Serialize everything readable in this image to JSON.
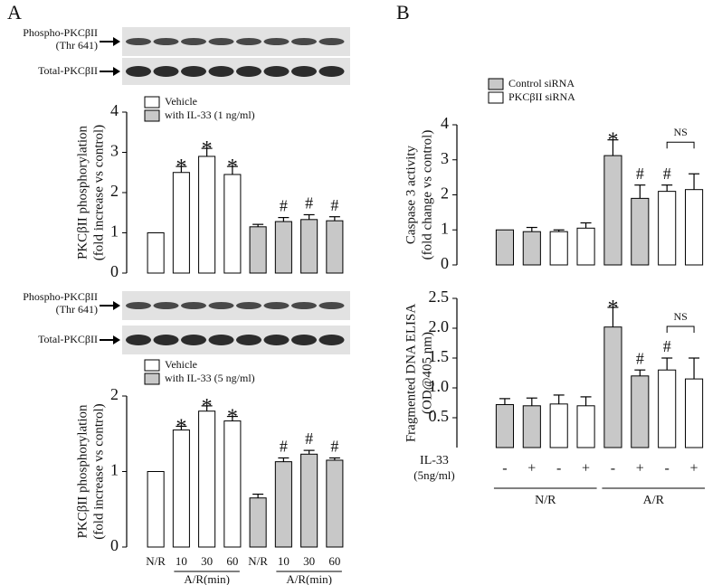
{
  "panels": [
    "A",
    "B"
  ],
  "blots": [
    {
      "rows": [
        {
          "label": [
            "Phospho-PKCβII",
            "(Thr 641)"
          ]
        },
        {
          "label": [
            "Total-PKCβII"
          ]
        }
      ]
    },
    {
      "rows": [
        {
          "label": [
            "Phospho-PKCβII",
            "(Thr 641)"
          ]
        },
        {
          "label": [
            "Total-PKCβII"
          ]
        }
      ]
    }
  ],
  "chart_data": [
    {
      "type": "bar",
      "ylabel": [
        "PKCβII phosphorylation",
        "(fold increase vs control)"
      ],
      "ylim": [
        0,
        4
      ],
      "yticks": [
        0,
        1,
        2,
        3,
        4
      ],
      "series": [
        {
          "name": "Vehicle",
          "color": "#ffffff",
          "values": [
            1,
            2.5,
            2.9,
            2.45,
            null,
            null,
            null,
            null
          ],
          "errors": [
            null,
            0.15,
            0.2,
            0.2,
            null,
            null,
            null,
            null
          ],
          "labels": [
            null,
            "*",
            "*",
            "*",
            null,
            null,
            null,
            null
          ]
        },
        {
          "name": "with IL-33 (1 ng/ml)",
          "color": "#c8c8c8",
          "values": [
            null,
            null,
            null,
            null,
            1.15,
            1.28,
            1.33,
            1.3
          ],
          "errors": [
            null,
            null,
            null,
            null,
            0.06,
            0.1,
            0.12,
            0.1
          ],
          "labels": [
            null,
            null,
            null,
            null,
            null,
            "#",
            "#",
            "#"
          ]
        }
      ]
    },
    {
      "type": "bar",
      "ylabel": [
        "PKCβII phosphorylation",
        "(fold increase vs control)"
      ],
      "ylim": [
        0,
        2
      ],
      "yticks": [
        0,
        1,
        2
      ],
      "categories": [
        "N/R",
        "10",
        "30",
        "60",
        "N/R",
        "10",
        "30",
        "60"
      ],
      "groups": [
        {
          "label": "A/R(min)",
          "from": 1,
          "to": 3
        },
        {
          "label": "A/R(min)",
          "from": 5,
          "to": 7
        }
      ],
      "series": [
        {
          "name": "Vehicle",
          "color": "#ffffff",
          "values": [
            1,
            1.55,
            1.8,
            1.67,
            null,
            null,
            null,
            null
          ],
          "errors": [
            null,
            0.05,
            0.07,
            0.06,
            null,
            null,
            null,
            null
          ],
          "labels": [
            null,
            "*",
            "*",
            "*",
            null,
            null,
            null,
            null
          ]
        },
        {
          "name": "with IL-33 (5 ng/ml)",
          "color": "#c8c8c8",
          "values": [
            null,
            null,
            null,
            null,
            0.65,
            1.13,
            1.23,
            1.15
          ],
          "errors": [
            null,
            null,
            null,
            null,
            0.05,
            0.05,
            0.05,
            0.03
          ],
          "labels": [
            null,
            null,
            null,
            null,
            null,
            "#",
            "#",
            "#"
          ]
        }
      ]
    },
    {
      "type": "bar",
      "ylabel": [
        "Caspase 3 activity",
        "(fold change vs control)"
      ],
      "ylim": [
        0,
        4
      ],
      "yticks": [
        0,
        1,
        2,
        3,
        4
      ],
      "brackets": [
        {
          "text": "NS",
          "from": 6,
          "to": 7
        }
      ],
      "series": [
        {
          "name": "Control siRNA",
          "color": "#c8c8c8",
          "values": [
            1,
            0.95,
            null,
            null,
            3.12,
            1.9,
            null,
            null
          ],
          "errors": [
            null,
            0.12,
            null,
            null,
            0.45,
            0.38,
            null,
            null
          ],
          "labels": [
            null,
            null,
            null,
            null,
            "*",
            "#",
            null,
            null
          ]
        },
        {
          "name": "PKCβII siRNA",
          "color": "#ffffff",
          "values": [
            null,
            null,
            0.95,
            1.05,
            null,
            null,
            2.1,
            2.15
          ],
          "errors": [
            null,
            null,
            0.05,
            0.15,
            null,
            null,
            0.18,
            0.45
          ],
          "labels": [
            null,
            null,
            null,
            null,
            null,
            null,
            "#",
            null
          ]
        }
      ]
    },
    {
      "type": "bar",
      "ylabel": [
        "Fragmented DNA ELISA",
        "(OD@405 nm)"
      ],
      "ylim": [
        0,
        2.5
      ],
      "yticks": [
        {
          "value": 0.5,
          "label": "0.5"
        },
        {
          "value": 1,
          "label": "1.0"
        },
        {
          "value": 1.5,
          "label": "1.5"
        },
        {
          "value": 2,
          "label": "2.0"
        },
        {
          "value": 2.5,
          "label": "2.5"
        }
      ],
      "brackets": [
        {
          "text": "NS",
          "from": 6,
          "to": 7
        }
      ],
      "category_axis_label": [
        "IL-33",
        "(5ng/ml)"
      ],
      "categories": [
        "-",
        "+",
        "-",
        "+",
        "-",
        "+",
        "-",
        "+"
      ],
      "groups": [
        {
          "label": "N/R",
          "from": 0,
          "to": 3
        },
        {
          "label": "A/R",
          "from": 4,
          "to": 7
        }
      ],
      "series": [
        {
          "name": "Control siRNA",
          "color": "#c8c8c8",
          "values": [
            0.72,
            0.7,
            null,
            null,
            2.02,
            1.2,
            null,
            null
          ],
          "errors": [
            0.1,
            0.13,
            null,
            null,
            0.33,
            0.1,
            null,
            null
          ],
          "labels": [
            null,
            null,
            null,
            null,
            "*",
            "#",
            null,
            null
          ]
        },
        {
          "name": "PKCβII siRNA",
          "color": "#ffffff",
          "values": [
            null,
            null,
            0.73,
            0.7,
            null,
            null,
            1.3,
            1.15
          ],
          "errors": [
            null,
            null,
            0.15,
            0.15,
            null,
            null,
            0.2,
            0.35
          ],
          "labels": [
            null,
            null,
            null,
            null,
            null,
            null,
            "#",
            null
          ]
        }
      ]
    }
  ]
}
